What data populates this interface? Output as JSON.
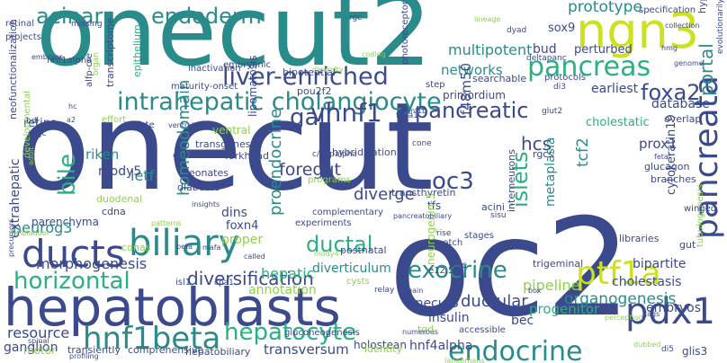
{
  "palette": {
    "blue": "#3b4a8c",
    "teal": "#2a8b8b",
    "green": "#2bb07f",
    "lime": "#8fd14f",
    "yellow": "#cde11d",
    "purple": "#472d7b",
    "dark": "#440154"
  },
  "words": [
    {
      "text": "onecut",
      "color": "blue"
    },
    {
      "text": "onecut2",
      "color": "teal"
    },
    {
      "text": "oc2",
      "color": "blue"
    },
    {
      "text": "hepatoblasts",
      "color": "blue"
    },
    {
      "text": "biliary",
      "color": "teal"
    },
    {
      "text": "ngn3",
      "color": "yellow"
    },
    {
      "text": "pancreas",
      "color": "green"
    },
    {
      "text": "ducts",
      "color": "blue"
    },
    {
      "text": "hnf1beta",
      "color": "teal"
    },
    {
      "text": "hepatocyte",
      "color": "green"
    },
    {
      "text": "pdx1",
      "color": "blue"
    },
    {
      "text": "endocrine",
      "color": "teal"
    },
    {
      "text": "intrahepatic cholangiocyte",
      "color": "teal"
    },
    {
      "text": "liver-enriched",
      "color": "blue"
    },
    {
      "text": "acinar",
      "color": "teal"
    },
    {
      "text": "endoderm",
      "color": "teal"
    },
    {
      "text": "vhnf1",
      "color": "blue"
    },
    {
      "text": "pancreatic",
      "color": "blue"
    },
    {
      "text": "pancreata",
      "color": "blue"
    },
    {
      "text": "horizontal",
      "color": "green"
    },
    {
      "text": "exocrine",
      "color": "teal"
    },
    {
      "text": "ptf1a",
      "color": "yellow"
    },
    {
      "text": "ductal",
      "color": "green"
    },
    {
      "text": "bile",
      "color": "green"
    },
    {
      "text": "gall",
      "color": "blue"
    },
    {
      "text": "foxa2",
      "color": "blue"
    },
    {
      "text": "oc3",
      "color": "blue"
    },
    {
      "text": "islets",
      "color": "green"
    },
    {
      "text": "prototype",
      "color": "teal"
    },
    {
      "text": "portal",
      "color": "teal"
    },
    {
      "text": "multipotent",
      "color": "teal"
    },
    {
      "text": "networks",
      "color": "teal"
    },
    {
      "text": "earliest",
      "color": "blue"
    },
    {
      "text": "diversification",
      "color": "blue"
    },
    {
      "text": "foregut",
      "color": "blue"
    },
    {
      "text": "letf",
      "color": "teal"
    },
    {
      "text": "hcs",
      "color": "blue"
    },
    {
      "text": "tcf2",
      "color": "teal"
    },
    {
      "text": "proendocrine",
      "color": "teal"
    },
    {
      "text": "homeodomain",
      "color": "teal"
    },
    {
      "text": "neurog3",
      "color": "teal"
    },
    {
      "text": "diverge",
      "color": "blue"
    },
    {
      "text": "metaplasia",
      "color": "teal"
    },
    {
      "text": "organogenesis",
      "color": "teal"
    },
    {
      "text": "ductular",
      "color": "blue"
    },
    {
      "text": "cholestasis",
      "color": "blue"
    },
    {
      "text": "embryos",
      "color": "blue"
    },
    {
      "text": "bipartite",
      "color": "blue"
    },
    {
      "text": "morphogenesis",
      "color": "blue"
    },
    {
      "text": "diverticulum",
      "color": "teal"
    },
    {
      "text": "hepatic",
      "color": "green"
    },
    {
      "text": "pipeline",
      "color": "lime"
    },
    {
      "text": "annotation",
      "color": "lime"
    },
    {
      "text": "onecut3",
      "color": "blue"
    },
    {
      "text": "bec",
      "color": "blue"
    },
    {
      "text": "progenitor",
      "color": "green"
    },
    {
      "text": "resource",
      "color": "blue"
    },
    {
      "text": "ganglion",
      "color": "blue"
    },
    {
      "text": "hnf4alpha",
      "color": "blue"
    },
    {
      "text": "holostean",
      "color": "blue"
    },
    {
      "text": "transversum",
      "color": "blue"
    },
    {
      "text": "glis3",
      "color": "blue"
    },
    {
      "text": "insulin",
      "color": "blue"
    },
    {
      "text": "parenchyma",
      "color": "blue"
    },
    {
      "text": "extrahepatic",
      "color": "blue"
    },
    {
      "text": "retina",
      "color": "blue"
    },
    {
      "text": "riken",
      "color": "teal"
    },
    {
      "text": "mody5",
      "color": "blue"
    },
    {
      "text": "dins",
      "color": "blue"
    },
    {
      "text": "foxn4",
      "color": "blue"
    },
    {
      "text": "proper",
      "color": "lime"
    },
    {
      "text": "lipomatosis",
      "color": "blue"
    },
    {
      "text": "prox1",
      "color": "blue"
    },
    {
      "text": "cytokeratin19",
      "color": "blue"
    },
    {
      "text": "database",
      "color": "blue"
    },
    {
      "text": "cholestatic",
      "color": "green"
    },
    {
      "text": "sox9",
      "color": "blue"
    },
    {
      "text": "bud",
      "color": "blue"
    },
    {
      "text": "perturbed",
      "color": "blue"
    },
    {
      "text": "f48m50",
      "color": "blue"
    },
    {
      "text": "primordium",
      "color": "blue"
    },
    {
      "text": "pou2f2",
      "color": "blue"
    },
    {
      "text": "bipotential",
      "color": "blue"
    },
    {
      "text": "searchable",
      "color": "blue"
    },
    {
      "text": "glucagon",
      "color": "blue"
    },
    {
      "text": "transthyretin",
      "color": "blue"
    },
    {
      "text": "tfs",
      "color": "blue"
    },
    {
      "text": "acini",
      "color": "blue"
    },
    {
      "text": "interneurons",
      "color": "blue"
    },
    {
      "text": "rgcs",
      "color": "blue"
    },
    {
      "text": "dyad",
      "color": "blue"
    },
    {
      "text": "rgc",
      "color": "blue"
    },
    {
      "text": "deltapanc",
      "color": "blue"
    },
    {
      "text": "protocols",
      "color": "blue"
    },
    {
      "text": "specification",
      "color": "blue"
    },
    {
      "text": "hyperplasia",
      "color": "blue"
    },
    {
      "text": "evolutionarily",
      "color": "blue"
    },
    {
      "text": "maturity-onset",
      "color": "blue"
    },
    {
      "text": "inactivation",
      "color": "blue"
    },
    {
      "text": "transcriptome",
      "color": "blue"
    },
    {
      "text": "epithelium",
      "color": "green"
    },
    {
      "text": "alfp-cre",
      "color": "blue"
    },
    {
      "text": "hnf1alpha",
      "color": "blue"
    },
    {
      "text": "neofunctionalization",
      "color": "blue"
    },
    {
      "text": "retinal",
      "color": "blue"
    },
    {
      "text": "projects",
      "color": "blue"
    },
    {
      "text": "embryonic",
      "color": "blue"
    },
    {
      "text": "ventral",
      "color": "lime"
    },
    {
      "text": "transgenesis",
      "color": "blue"
    },
    {
      "text": "forkhead",
      "color": "blue"
    },
    {
      "text": "glucose",
      "color": "blue"
    },
    {
      "text": "effort",
      "color": "lime"
    },
    {
      "text": "fate",
      "color": "blue"
    },
    {
      "text": "neonates",
      "color": "blue"
    },
    {
      "text": "diabetes",
      "color": "blue"
    },
    {
      "text": "developmental",
      "color": "lime"
    },
    {
      "text": "duodenal",
      "color": "lime"
    },
    {
      "text": "cdna",
      "color": "blue"
    },
    {
      "text": "cdnas",
      "color": "lime"
    },
    {
      "text": "c/ebpalpha",
      "color": "blue"
    },
    {
      "text": "hybridization",
      "color": "blue"
    },
    {
      "text": "programs",
      "color": "lime"
    },
    {
      "text": "complementary",
      "color": "blue"
    },
    {
      "text": "experiments",
      "color": "blue"
    },
    {
      "text": "stages",
      "color": "blue"
    },
    {
      "text": "notch",
      "color": "blue"
    },
    {
      "text": "neurogenin-3",
      "color": "lime"
    },
    {
      "text": "trigeminal",
      "color": "blue"
    },
    {
      "text": "cysts",
      "color": "lime"
    },
    {
      "text": "tgd",
      "color": "lime"
    },
    {
      "text": "accessible",
      "color": "blue"
    },
    {
      "text": "identity",
      "color": "lime"
    },
    {
      "text": "motor",
      "color": "lime"
    },
    {
      "text": "transiently",
      "color": "blue"
    },
    {
      "text": "comprehensive",
      "color": "blue"
    },
    {
      "text": "hepatobiliary",
      "color": "blue"
    },
    {
      "text": "gluconeogenesis",
      "color": "blue"
    },
    {
      "text": "libraries",
      "color": "blue"
    },
    {
      "text": "tubulogenesis",
      "color": "lime"
    },
    {
      "text": "overlap",
      "color": "blue"
    },
    {
      "text": "branches",
      "color": "blue"
    },
    {
      "text": "gut",
      "color": "blue"
    },
    {
      "text": "winged",
      "color": "blue"
    },
    {
      "text": "di5",
      "color": "blue"
    },
    {
      "text": "di3",
      "color": "blue"
    },
    {
      "text": "step",
      "color": "blue"
    },
    {
      "text": "isl1",
      "color": "blue"
    },
    {
      "text": "cpa1",
      "color": "blue"
    },
    {
      "text": "relay",
      "color": "blue"
    },
    {
      "text": "e12.5",
      "color": "blue"
    },
    {
      "text": "postnatal",
      "color": "blue"
    },
    {
      "text": "late",
      "color": "blue"
    },
    {
      "text": "albumin",
      "color": "blue"
    },
    {
      "text": "sisu",
      "color": "blue"
    },
    {
      "text": "rise",
      "color": "blue"
    },
    {
      "text": "coding",
      "color": "lime"
    },
    {
      "text": "photoreceptors",
      "color": "blue"
    },
    {
      "text": "cone",
      "color": "blue"
    },
    {
      "text": "foxa1",
      "color": "blue"
    },
    {
      "text": "glut2",
      "color": "blue"
    },
    {
      "text": "numerous",
      "color": "blue"
    },
    {
      "text": "profiling",
      "color": "blue"
    },
    {
      "text": "spinal",
      "color": "blue"
    },
    {
      "text": "bdl",
      "color": "blue"
    },
    {
      "text": "mgc",
      "color": "blue"
    },
    {
      "text": "hc",
      "color": "blue"
    },
    {
      "text": "a2",
      "color": "blue"
    },
    {
      "text": "missing",
      "color": "blue"
    },
    {
      "text": "lineage",
      "color": "lime"
    },
    {
      "text": "hnf1b",
      "color": "blue"
    },
    {
      "text": "gain",
      "color": "blue"
    },
    {
      "text": "box",
      "color": "blue"
    },
    {
      "text": "tags",
      "color": "blue"
    },
    {
      "text": "perception",
      "color": "lime"
    },
    {
      "text": "dubbed",
      "color": "lime"
    },
    {
      "text": "langerhans",
      "color": "lime"
    },
    {
      "text": "fetal",
      "color": "blue"
    },
    {
      "text": "called",
      "color": "blue"
    },
    {
      "text": "beta",
      "color": "blue"
    },
    {
      "text": "mafa",
      "color": "blue"
    },
    {
      "text": "mody4",
      "color": "lime"
    },
    {
      "text": "pancreatobiliary",
      "color": "blue"
    },
    {
      "text": "patterns",
      "color": "lime"
    },
    {
      "text": "precursors",
      "color": "blue"
    },
    {
      "text": "gallbladder",
      "color": "lime"
    },
    {
      "text": "diversity",
      "color": "lime"
    },
    {
      "text": "insights",
      "color": "blue"
    },
    {
      "text": "collection",
      "color": "blue"
    },
    {
      "text": "adult",
      "color": "lime"
    },
    {
      "text": "embryos",
      "color": "blue"
    },
    {
      "text": "ventral",
      "color": "blue"
    },
    {
      "text": "organ",
      "color": "lime"
    },
    {
      "text": "hmg",
      "color": "blue"
    },
    {
      "text": "genome",
      "color": "blue"
    }
  ]
}
